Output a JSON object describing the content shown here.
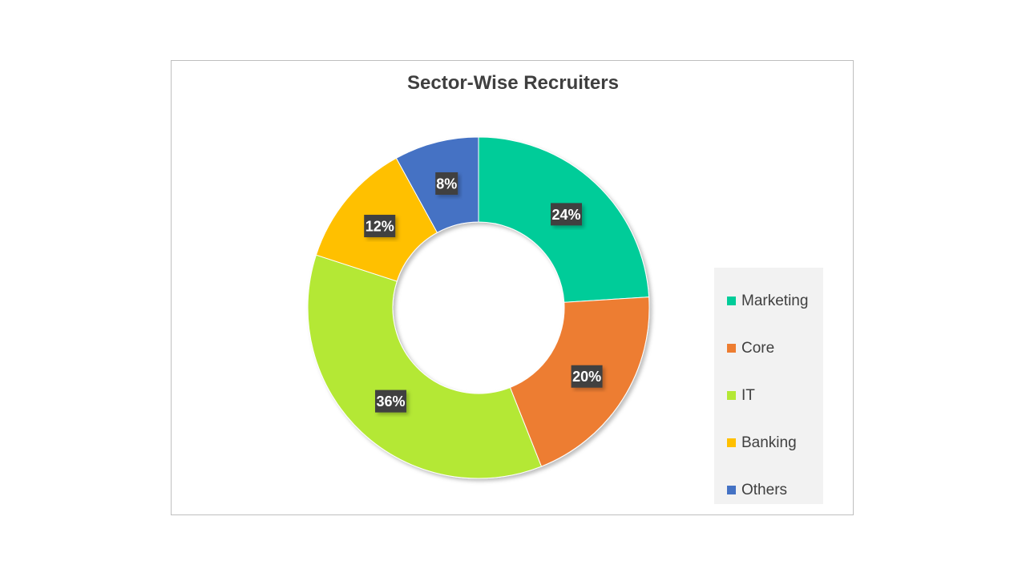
{
  "chart_data": {
    "type": "pie",
    "subtype": "donut",
    "title": "Sector-Wise Recruiters",
    "categories": [
      "Marketing",
      "Core",
      "IT",
      "Banking",
      "Others"
    ],
    "values": [
      24,
      20,
      36,
      12,
      8
    ],
    "data_labels": [
      "24%",
      "20%",
      "36%",
      "12%",
      "8%"
    ],
    "colors": [
      "#00cc99",
      "#ed7d31",
      "#b4e835",
      "#ffc000",
      "#4472c4"
    ],
    "legend_position": "right"
  }
}
